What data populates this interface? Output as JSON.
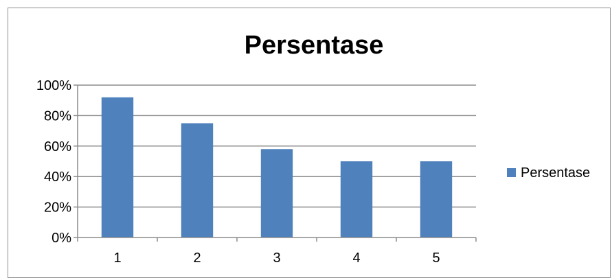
{
  "chart_data": {
    "type": "bar",
    "title": "Persentase",
    "xlabel": "",
    "ylabel": "",
    "categories": [
      "1",
      "2",
      "3",
      "4",
      "5"
    ],
    "series": [
      {
        "name": "Persentase",
        "values": [
          0.92,
          0.75,
          0.58,
          0.5,
          0.5
        ],
        "color": "#4f81bd"
      }
    ],
    "ylim": [
      0,
      1
    ],
    "yticks": [
      0,
      0.2,
      0.4,
      0.6,
      0.8,
      1.0
    ],
    "ytick_labels": [
      "0%",
      "20%",
      "40%",
      "60%",
      "80%",
      "100%"
    ],
    "grid": true,
    "legend": "right"
  }
}
